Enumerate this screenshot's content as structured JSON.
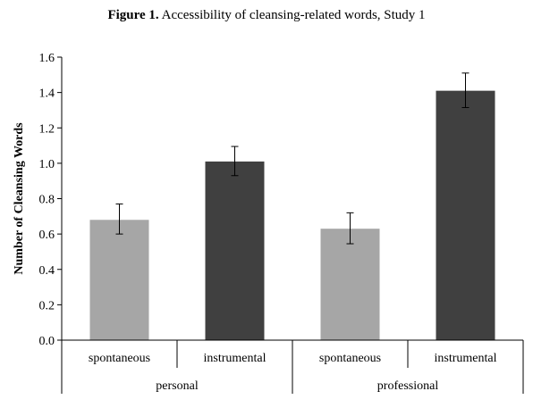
{
  "title": {
    "prefix": "Figure 1.",
    "text": "Accessibility of cleansing-related words, Study 1"
  },
  "chart_data": {
    "type": "bar",
    "title": "Figure 1. Accessibility of cleansing-related words, Study 1",
    "xlabel": "",
    "ylabel": "Number of Cleansing Words",
    "ylim": [
      0,
      1.6
    ],
    "yticks": [
      "0.0",
      "0.2",
      "0.4",
      "0.6",
      "0.8",
      "1.0",
      "1.2",
      "1.4",
      "1.6"
    ],
    "groups": [
      "personal",
      "professional"
    ],
    "categories": [
      "spontaneous",
      "instrumental",
      "spontaneous",
      "instrumental"
    ],
    "values": [
      0.68,
      1.01,
      0.63,
      1.41
    ],
    "error_low": [
      0.6,
      0.93,
      0.545,
      1.315
    ],
    "error_high": [
      0.77,
      1.095,
      0.72,
      1.51
    ],
    "colors": {
      "spontaneous": "#a6a6a6",
      "instrumental": "#404040"
    },
    "grid": false,
    "legend": "none"
  }
}
